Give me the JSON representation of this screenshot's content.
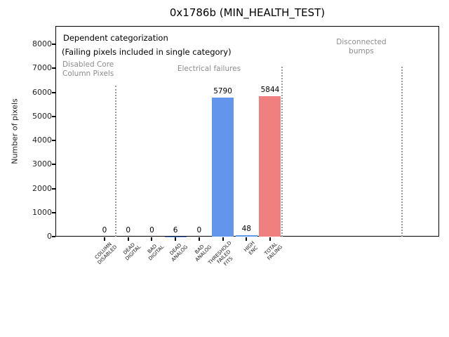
{
  "chart_data": {
    "type": "bar",
    "title": "0x1786b (MIN_HEALTH_TEST)",
    "xlabel": "",
    "ylabel": "Number of pixels",
    "ylim": [
      0,
      8760
    ],
    "yticks": [
      0,
      1000,
      2000,
      3000,
      4000,
      5000,
      6000,
      7000,
      8000
    ],
    "grid": false,
    "legend": "none",
    "categories": [
      "COLUMN\nDISABLED",
      "DEAD\nDIGITAL",
      "BAD\nDIGITAL",
      "DEAD\nANALOG",
      "BAD\nANALOG",
      "THRESHOLD\nFAILED\nFITS",
      "HIGH\nENC",
      "TOTAL\nFAILING"
    ],
    "values": [
      0,
      0,
      0,
      6,
      0,
      5790,
      48,
      5844
    ],
    "value_labels": [
      "0",
      "0",
      "0",
      "6",
      "0",
      "5790",
      "48",
      "5844"
    ],
    "bar_colors": [
      "#6495ed",
      "#6495ed",
      "#6495ed",
      "#6495ed",
      "#6495ed",
      "#6495ed",
      "#6495ed",
      "#f08080"
    ],
    "bar_width_ratio": 0.92,
    "annotations": {
      "dependent": "Dependent categorization",
      "failing": "(Failing pixels included in single category)",
      "disabled_core": "Disabled Core\nColumn Pixels",
      "electrical": "Electrical failures",
      "disconnected": "Disconnected\nbumps"
    },
    "separator_style": {
      "line": "dotted",
      "color": "#999999"
    },
    "colors": {
      "blue_bar": "#6495ed",
      "red_bar": "#f08080",
      "annotation_gray": "#8c8c8c",
      "axis": "#000000"
    }
  }
}
